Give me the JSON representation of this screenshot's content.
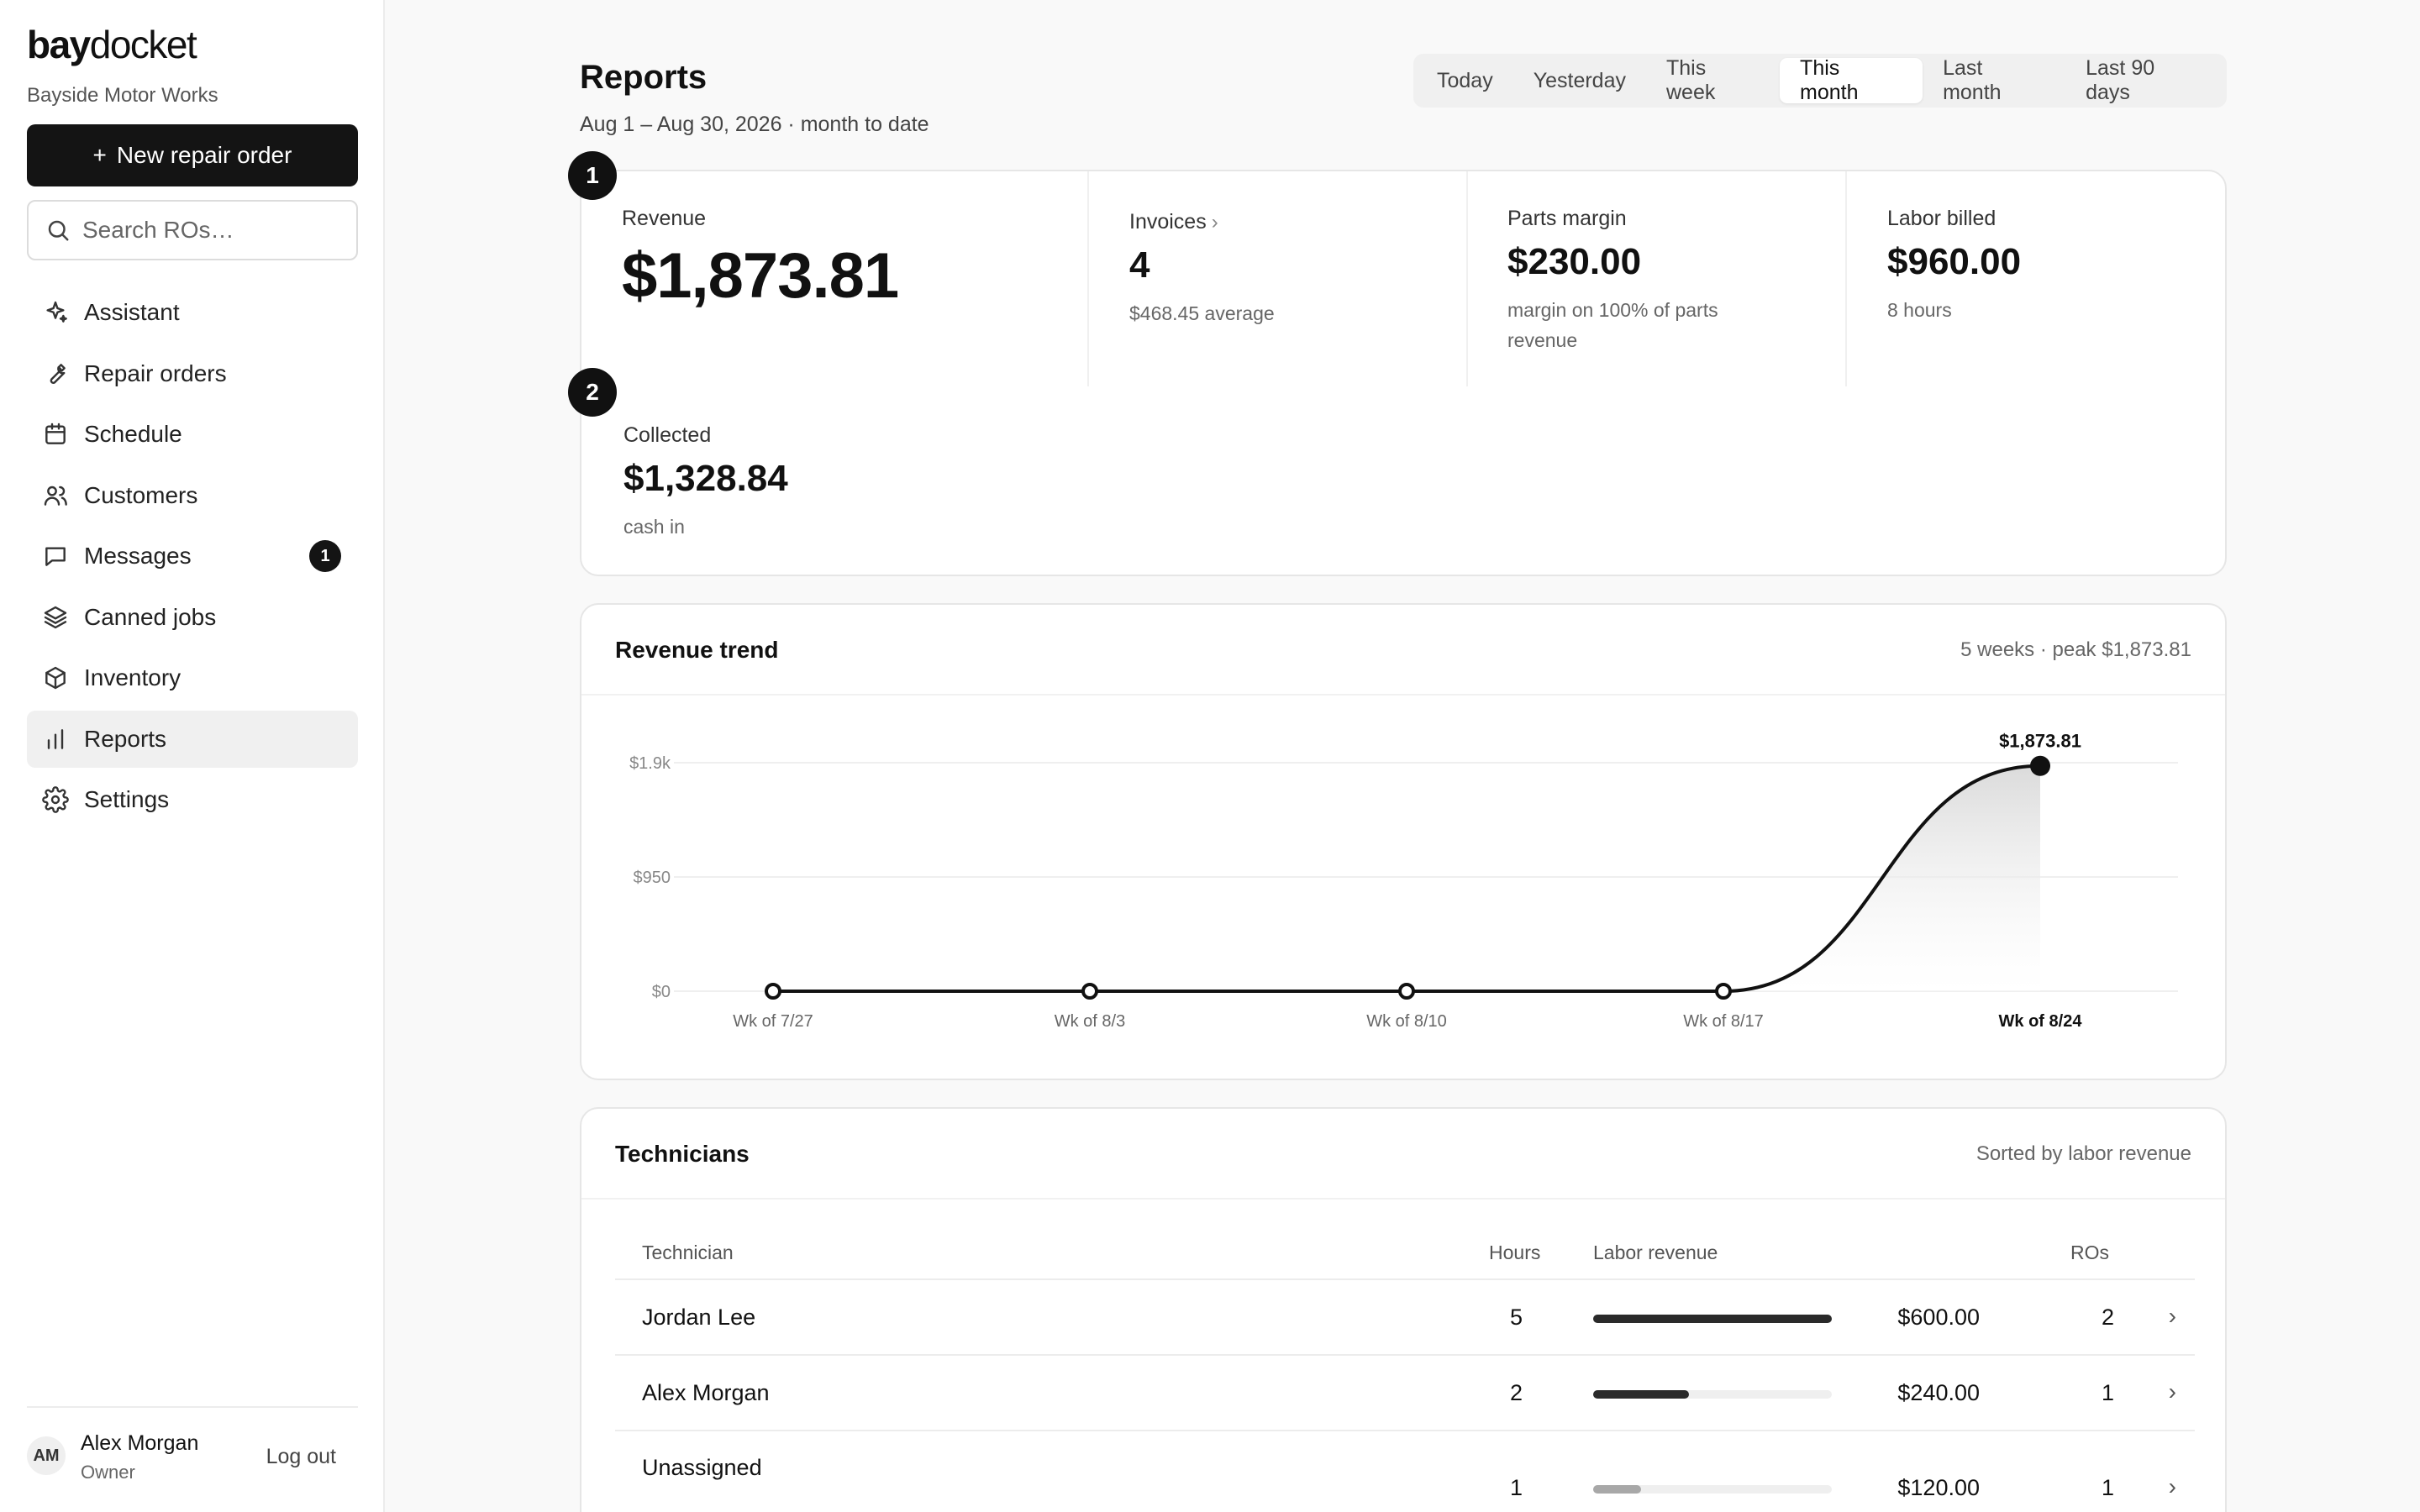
{
  "brand": {
    "bold": "bay",
    "light": "docket"
  },
  "company": "Bayside Motor Works",
  "new_ro_label": "New repair order",
  "new_ro_plus": "+",
  "search": {
    "placeholder": "Search ROs…"
  },
  "nav": [
    {
      "label": "Assistant",
      "icon": "sparkle-icon"
    },
    {
      "label": "Repair orders",
      "icon": "wrench-icon"
    },
    {
      "label": "Schedule",
      "icon": "calendar-icon"
    },
    {
      "label": "Customers",
      "icon": "users-icon"
    },
    {
      "label": "Messages",
      "icon": "message-icon",
      "badge": "1"
    },
    {
      "label": "Canned jobs",
      "icon": "layers-icon"
    },
    {
      "label": "Inventory",
      "icon": "box-icon"
    },
    {
      "label": "Reports",
      "icon": "bar-chart-icon",
      "active": true
    },
    {
      "label": "Settings",
      "icon": "gear-icon"
    }
  ],
  "user": {
    "initials": "AM",
    "name": "Alex Morgan",
    "role": "Owner",
    "logout": "Log out"
  },
  "page": {
    "title": "Reports",
    "range": "Aug 1 – Aug 30, 2026 · month to date",
    "tabs": [
      "Today",
      "Yesterday",
      "This week",
      "This month",
      "Last month",
      "Last 90 days"
    ],
    "active_tab": "This month"
  },
  "stats": {
    "marker1": "1",
    "marker2": "2",
    "revenue": {
      "label": "Revenue",
      "value": "$1,873.81"
    },
    "invoices": {
      "label": "Invoices",
      "chevron": "›",
      "value": "4",
      "sub": "$468.45 average"
    },
    "parts_margin": {
      "label": "Parts margin",
      "value": "$230.00",
      "sub": "margin on 100% of parts revenue"
    },
    "labor_billed": {
      "label": "Labor billed",
      "value": "$960.00",
      "sub": "8 hours"
    },
    "collected": {
      "label": "Collected",
      "value": "$1,328.84",
      "sub": "cash in"
    }
  },
  "trend": {
    "title": "Revenue trend",
    "meta": "5 weeks · peak $1,873.81"
  },
  "chart_data": {
    "type": "area",
    "title": "Revenue trend",
    "categories": [
      "Wk of 7/27",
      "Wk of 8/3",
      "Wk of 8/10",
      "Wk of 8/17",
      "Wk of 8/24"
    ],
    "values": [
      0,
      0,
      0,
      0,
      1873.81
    ],
    "yticks": [
      0,
      950,
      1900
    ],
    "ytick_labels": [
      "$0",
      "$950",
      "$1.9k"
    ],
    "ylim": [
      0,
      1900
    ],
    "peak_label": "$1,873.81",
    "highlight_category": "Wk of 8/24",
    "grid": true,
    "line_color": "#111111"
  },
  "technicians": {
    "title": "Technicians",
    "meta": "Sorted by labor revenue",
    "headers": {
      "tech": "Technician",
      "hours": "Hours",
      "labor": "Labor revenue",
      "ros": "ROs"
    },
    "rows": [
      {
        "name": "Jordan Lee",
        "hours": "5",
        "labor": "$600.00",
        "labor_share": 1.0,
        "ros": "2"
      },
      {
        "name": "Alex Morgan",
        "hours": "2",
        "labor": "$240.00",
        "labor_share": 0.4,
        "ros": "1"
      },
      {
        "name": "Unassigned",
        "hours": "1",
        "labor": "$120.00",
        "labor_share": 0.2,
        "ros": "1"
      }
    ],
    "row_chevron": "›"
  }
}
